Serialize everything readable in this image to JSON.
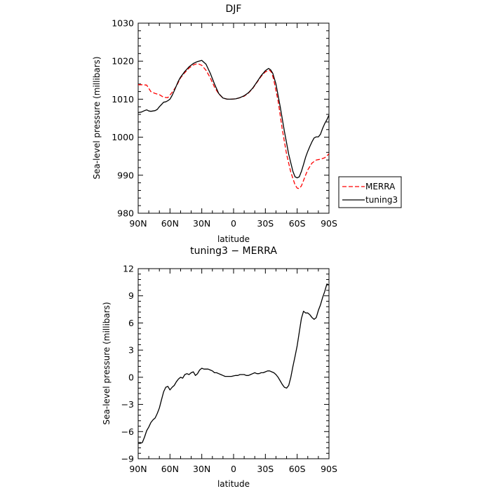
{
  "chart_data": [
    {
      "type": "line",
      "title": "DJF",
      "xlabel": "latitude",
      "ylabel": "Sea-level pressure (millibars)",
      "x_tick_labels": [
        "90N",
        "60N",
        "30N",
        "0",
        "30S",
        "60S",
        "90S"
      ],
      "x_ticks": [
        90,
        60,
        30,
        0,
        -30,
        -60,
        -90
      ],
      "xlim": [
        90,
        -90
      ],
      "ylim": [
        980,
        1030
      ],
      "y_ticks": [
        980,
        990,
        1000,
        1010,
        1020,
        1030
      ],
      "y_tick_labels": [
        "980",
        "990",
        "1000",
        "1010",
        "1020",
        "1030"
      ],
      "legend": {
        "placement": "right-outside",
        "entries": [
          "MERRA",
          "tuning3"
        ]
      },
      "series": [
        {
          "name": "MERRA",
          "color": "#ff0000",
          "dash": "dashed",
          "x": [
            90,
            86,
            82,
            78,
            74,
            70,
            66,
            62,
            58,
            54,
            50,
            46,
            42,
            38,
            34,
            30,
            26,
            22,
            18,
            14,
            10,
            6,
            2,
            -2,
            -6,
            -10,
            -14,
            -18,
            -22,
            -26,
            -30,
            -34,
            -36,
            -38,
            -42,
            -46,
            -50,
            -54,
            -58,
            -60,
            -62,
            -64,
            -66,
            -68,
            -70,
            -74,
            -78,
            -82,
            -86,
            -90
          ],
          "y": [
            1013.8,
            1013.8,
            1013.7,
            1012.0,
            1011.5,
            1011.2,
            1010.5,
            1010.4,
            1011.8,
            1013.4,
            1015.6,
            1017.0,
            1018.2,
            1019.0,
            1019.4,
            1018.9,
            1017.6,
            1015.6,
            1013.2,
            1011.4,
            1010.3,
            1010.0,
            1010.0,
            1010.1,
            1010.4,
            1010.8,
            1011.6,
            1012.8,
            1014.4,
            1016.0,
            1017.2,
            1017.6,
            1017.0,
            1015.0,
            1009.5,
            1002.0,
            995.5,
            990.8,
            987.5,
            986.6,
            986.5,
            987.2,
            988.6,
            990.1,
            991.4,
            993.2,
            994.0,
            994.2,
            994.6,
            995.6
          ]
        },
        {
          "name": "tuning3",
          "color": "#000000",
          "dash": "solid",
          "x": [
            90,
            87,
            84,
            82,
            80,
            78,
            76,
            74,
            72,
            70,
            68,
            66,
            64,
            62,
            60,
            58,
            56,
            54,
            52,
            50,
            46,
            42,
            38,
            34,
            30,
            26,
            22,
            18,
            14,
            10,
            6,
            2,
            -2,
            -6,
            -10,
            -14,
            -18,
            -22,
            -26,
            -30,
            -33,
            -35,
            -37,
            -40,
            -44,
            -48,
            -52,
            -56,
            -58,
            -60,
            -62,
            -64,
            -66,
            -68,
            -70,
            -72,
            -74,
            -76,
            -78,
            -80,
            -82,
            -84,
            -86,
            -88,
            -90
          ],
          "y": [
            1006.5,
            1006.6,
            1007.0,
            1007.2,
            1006.9,
            1006.8,
            1006.9,
            1007.0,
            1007.3,
            1008.0,
            1008.6,
            1009.2,
            1009.3,
            1009.6,
            1010.0,
            1011.0,
            1012.2,
            1013.5,
            1014.8,
            1015.8,
            1017.3,
            1018.5,
            1019.4,
            1019.9,
            1020.2,
            1019.2,
            1016.8,
            1014.0,
            1011.5,
            1010.3,
            1010.0,
            1010.0,
            1010.1,
            1010.4,
            1010.9,
            1011.7,
            1012.9,
            1014.5,
            1016.2,
            1017.5,
            1018.1,
            1017.7,
            1016.8,
            1014.0,
            1008.0,
            1001.5,
            995.5,
            991.0,
            989.6,
            989.3,
            989.6,
            991.0,
            992.8,
            994.8,
            996.3,
            997.6,
            998.8,
            999.8,
            1000.1,
            1000.1,
            1000.8,
            1002.3,
            1003.6,
            1004.6,
            1005.8
          ]
        }
      ]
    },
    {
      "type": "line",
      "title": "tuning3 − MERRA",
      "xlabel": "latitude",
      "ylabel": "Sea-level pressure (millibars)",
      "x_tick_labels": [
        "90N",
        "60N",
        "30N",
        "0",
        "30S",
        "60S",
        "90S"
      ],
      "x_ticks": [
        90,
        60,
        30,
        0,
        -30,
        -60,
        -90
      ],
      "xlim": [
        90,
        -90
      ],
      "ylim": [
        -9,
        12
      ],
      "y_ticks": [
        -9,
        -6,
        -3,
        0,
        3,
        6,
        9,
        12
      ],
      "y_tick_labels": [
        "−9",
        "−6",
        "−3",
        "0",
        "3",
        "6",
        "9",
        "12"
      ],
      "series": [
        {
          "name": "tuning3 − MERRA",
          "color": "#000000",
          "dash": "solid",
          "x": [
            90,
            88,
            86,
            84,
            82,
            80,
            78,
            76,
            74,
            72,
            70,
            68,
            66,
            64,
            62,
            60,
            58,
            56,
            54,
            52,
            50,
            48,
            46,
            44,
            42,
            40,
            38,
            36,
            34,
            32,
            30,
            28,
            26,
            24,
            22,
            20,
            18,
            16,
            14,
            12,
            10,
            8,
            6,
            4,
            2,
            0,
            -2,
            -4,
            -6,
            -8,
            -10,
            -12,
            -14,
            -16,
            -18,
            -20,
            -22,
            -24,
            -26,
            -28,
            -30,
            -32,
            -34,
            -36,
            -38,
            -40,
            -42,
            -44,
            -46,
            -48,
            -50,
            -52,
            -54,
            -56,
            -58,
            -60,
            -62,
            -64,
            -66,
            -68,
            -70,
            -72,
            -74,
            -76,
            -78,
            -80,
            -82,
            -84,
            -86,
            -88,
            -90
          ],
          "y": [
            -7.3,
            -7.3,
            -7.2,
            -6.6,
            -5.9,
            -5.5,
            -5.0,
            -4.7,
            -4.5,
            -4.0,
            -3.4,
            -2.5,
            -1.6,
            -1.1,
            -1.0,
            -1.4,
            -1.1,
            -0.9,
            -0.5,
            -0.2,
            0.0,
            -0.1,
            0.3,
            0.4,
            0.3,
            0.5,
            0.6,
            0.2,
            0.4,
            0.8,
            1.0,
            0.9,
            0.9,
            0.9,
            0.8,
            0.7,
            0.5,
            0.5,
            0.4,
            0.3,
            0.2,
            0.1,
            0.1,
            0.1,
            0.1,
            0.15,
            0.2,
            0.2,
            0.3,
            0.3,
            0.3,
            0.2,
            0.2,
            0.3,
            0.4,
            0.5,
            0.4,
            0.4,
            0.5,
            0.5,
            0.6,
            0.7,
            0.7,
            0.6,
            0.5,
            0.3,
            0.0,
            -0.4,
            -0.8,
            -1.1,
            -1.2,
            -0.9,
            0.0,
            1.2,
            2.3,
            3.5,
            5.0,
            6.5,
            7.3,
            7.1,
            7.1,
            6.9,
            6.6,
            6.4,
            6.6,
            7.4,
            8.0,
            8.8,
            9.5,
            10.3,
            10.2
          ]
        }
      ]
    }
  ]
}
